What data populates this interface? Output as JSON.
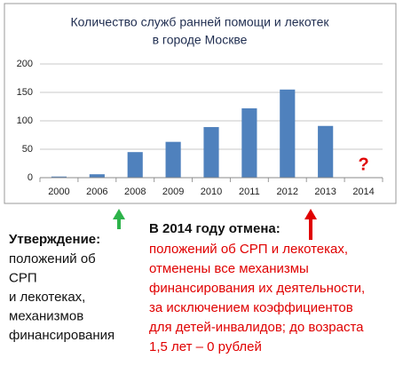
{
  "chart_data": {
    "type": "bar",
    "title": [
      "Количество служб ранней помощи и лекотек",
      "в городе Москве"
    ],
    "categories": [
      "2000",
      "2006",
      "2008",
      "2009",
      "2010",
      "2011",
      "2012",
      "2013",
      "2014"
    ],
    "values": [
      2,
      6,
      45,
      63,
      89,
      122,
      155,
      91,
      null
    ],
    "color": "#4f81bd",
    "ylim": [
      0,
      200
    ],
    "yticks": [
      0,
      50,
      100,
      150,
      200
    ],
    "grid": true,
    "annotations": [
      {
        "text": "?",
        "x": "2014",
        "color": "#e00000"
      }
    ]
  },
  "notes": {
    "left": {
      "title": "Утверждение",
      "lines": [
        "положений об",
        "СРП",
        "и лекотеках,",
        "механизмов",
        "финансирования"
      ]
    },
    "right": {
      "title": "В 2014  году отмена",
      "lines": [
        "положений об СРП и лекотеках,",
        "отменены все механизмы",
        "финансирования их деятельности,",
        "за исключением  коэффициентов",
        "для детей-инвалидов; до возраста",
        "1,5 лет   – 0 рублей"
      ]
    }
  }
}
